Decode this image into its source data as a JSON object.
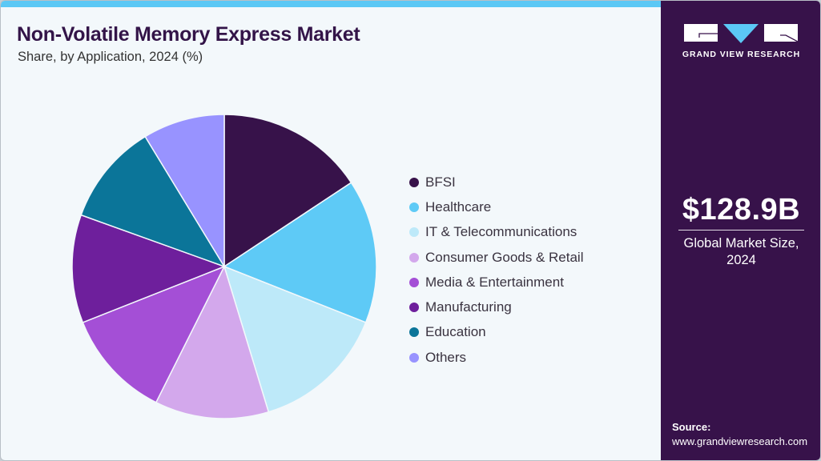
{
  "header": {
    "title": "Non-Volatile Memory Express Market",
    "subtitle": "Share, by Application, 2024 (%)"
  },
  "legend": {
    "items": [
      {
        "label": "BFSI",
        "color": "#37124a"
      },
      {
        "label": "Healthcare",
        "color": "#5ecaf6"
      },
      {
        "label": "IT & Telecommunications",
        "color": "#bde9f9"
      },
      {
        "label": "Consumer Goods & Retail",
        "color": "#d3a8ec"
      },
      {
        "label": "Media & Entertainment",
        "color": "#a44fd6"
      },
      {
        "label": "Manufacturing",
        "color": "#6e1f9c"
      },
      {
        "label": "Education",
        "color": "#0b7599"
      },
      {
        "label": "Others",
        "color": "#9893ff"
      }
    ]
  },
  "sidebar": {
    "brand": "GRAND VIEW RESEARCH",
    "market_size_value": "$128.9B",
    "market_size_label_line1": "Global Market Size,",
    "market_size_label_line2": "2024",
    "source_title": "Source:",
    "source_url": "www.grandviewresearch.com"
  },
  "colors": {
    "accent_bar": "#5bc8f5",
    "sidebar_bg": "#37124a",
    "title": "#331448",
    "background": "#f3f8fb"
  },
  "chart_data": {
    "type": "pie",
    "title": "Non-Volatile Memory Express Market",
    "subtitle": "Share, by Application, 2024 (%)",
    "categories": [
      "BFSI",
      "Healthcare",
      "IT & Telecommunications",
      "Consumer Goods & Retail",
      "Media & Entertainment",
      "Manufacturing",
      "Education",
      "Others"
    ],
    "values": [
      15.7,
      15.3,
      14.3,
      12.1,
      11.6,
      11.5,
      10.8,
      8.7
    ],
    "colors": [
      "#37124a",
      "#5ecaf6",
      "#bde9f9",
      "#d3a8ec",
      "#a44fd6",
      "#6e1f9c",
      "#0b7599",
      "#9893ff"
    ],
    "start_angle_deg": 0,
    "direction": "clockwise",
    "legend_position": "right",
    "data_labels": false,
    "annotation": "$128.9B Global Market Size, 2024"
  }
}
